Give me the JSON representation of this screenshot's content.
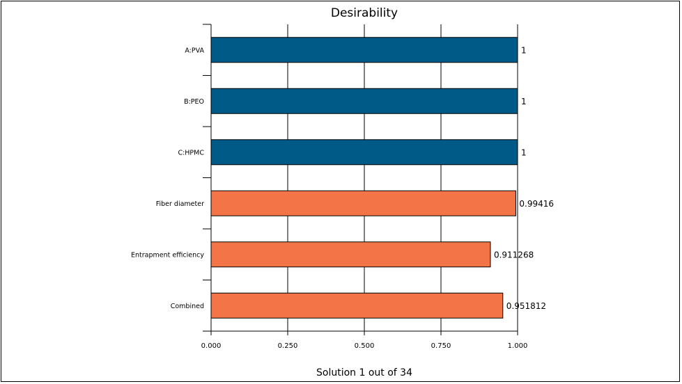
{
  "chart_data": {
    "type": "bar",
    "orientation": "horizontal",
    "title": "Desirability",
    "footer": "Solution 1 out of 34",
    "categories": [
      "A:PVA",
      "B:PEO",
      "C:HPMC",
      "Fiber diameter",
      "Entrapment efficiency",
      "Combined"
    ],
    "values": [
      1,
      1,
      1,
      0.99416,
      0.911268,
      0.951812
    ],
    "value_labels": [
      "1",
      "1",
      "1",
      "0.99416",
      "0.911268",
      "0.951812"
    ],
    "bar_colors": [
      "#005a87",
      "#005a87",
      "#005a87",
      "#f37547",
      "#f37547",
      "#f37547"
    ],
    "xlim": [
      0,
      1
    ],
    "xticks": [
      0,
      0.25,
      0.5,
      0.75,
      1
    ],
    "xtick_labels": [
      "0.000",
      "0.250",
      "0.500",
      "0.750",
      "1.000"
    ],
    "grid": true
  }
}
